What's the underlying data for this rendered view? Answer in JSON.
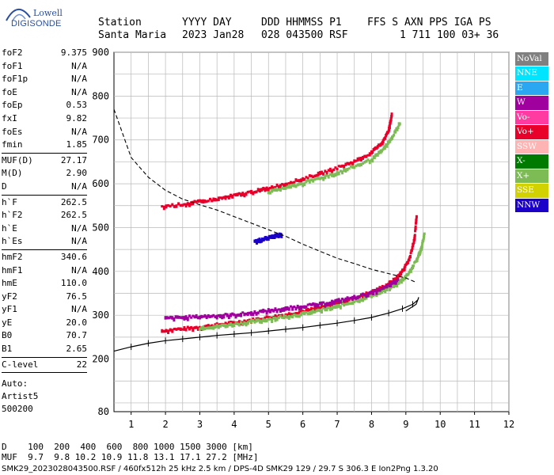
{
  "logo": {
    "line1": "Lowell",
    "line2": "DIGISONDE"
  },
  "header": {
    "row1": [
      "Station",
      "YYYY DAY",
      "DDD HHMMSS P1",
      "FFS S AXN PPS IGA PS"
    ],
    "row2": [
      "Santa Maria",
      "2023 Jan28",
      "028 043500 RSF",
      "1 711 100 03+ 36"
    ]
  },
  "params": [
    {
      "k": "foF2",
      "v": "9.375"
    },
    {
      "k": "foF1",
      "v": "N/A"
    },
    {
      "k": "foF1p",
      "v": "N/A"
    },
    {
      "k": "foE",
      "v": "N/A"
    },
    {
      "k": "foEp",
      "v": "0.53"
    },
    {
      "k": "fxI",
      "v": "9.82"
    },
    {
      "k": "foEs",
      "v": "N/A"
    },
    {
      "k": "fmin",
      "v": "1.85"
    },
    {
      "sep": true
    },
    {
      "k": "MUF(D)",
      "v": "27.17"
    },
    {
      "k": "M(D)",
      "v": "2.90"
    },
    {
      "k": "D",
      "v": "N/A"
    },
    {
      "sep": true
    },
    {
      "k": "h`F",
      "v": "262.5"
    },
    {
      "k": "h`F2",
      "v": "262.5"
    },
    {
      "k": "h`E",
      "v": "N/A"
    },
    {
      "k": "h`Es",
      "v": "N/A"
    },
    {
      "sep": true
    },
    {
      "k": "hmF2",
      "v": "340.6"
    },
    {
      "k": "hmF1",
      "v": "N/A"
    },
    {
      "k": "hmE",
      "v": "110.0"
    },
    {
      "k": "yF2",
      "v": "76.5"
    },
    {
      "k": "yF1",
      "v": "N/A"
    },
    {
      "k": "yE",
      "v": "20.0"
    },
    {
      "k": "B0",
      "v": "70.7"
    },
    {
      "k": "B1",
      "v": "2.65"
    },
    {
      "sep": true
    },
    {
      "k": "C-level",
      "v": "22"
    },
    {
      "sep": true
    }
  ],
  "auto": [
    "Auto:",
    "Artist5",
    "500200"
  ],
  "legend": [
    {
      "label": "NoVal",
      "color": "#808080"
    },
    {
      "label": "NNE",
      "color": "#00e5ff"
    },
    {
      "label": "E",
      "color": "#2aa7f0"
    },
    {
      "label": "W",
      "color": "#a0009e"
    },
    {
      "label": "Vo-",
      "color": "#ff3aa0"
    },
    {
      "label": "Vo+",
      "color": "#e8002a"
    },
    {
      "label": "SSW",
      "color": "#ffb4b4"
    },
    {
      "label": "X-",
      "color": "#007a00"
    },
    {
      "label": "X+",
      "color": "#7dbb55"
    },
    {
      "label": "SSE",
      "color": "#d2d200"
    },
    {
      "label": "NNW",
      "color": "#1a00c8"
    }
  ],
  "bottom": {
    "d_row": "D    100  200  400  600  800 1000 1500 3000 [km]",
    "muf_row": "MUF  9.7  9.8 10.2 10.9 11.8 13.1 17.1 27.2 [MHz]",
    "footer": "SMK29_2023028043500.RSF / 460fx512h 25 kHz 2.5 km / DPS-4D SMK29 129 / 29.7 S 306.3 E Ion2Png 1.3.20"
  },
  "chart_data": {
    "type": "scatter",
    "title": "",
    "xlabel": "",
    "ylabel": "",
    "xlim": [
      0.5,
      12
    ],
    "ylim": [
      80,
      900
    ],
    "x_ticks": [
      1,
      2,
      3,
      4,
      5,
      6,
      7,
      8,
      9,
      10,
      11,
      12
    ],
    "y_ticks": [
      200,
      300,
      400,
      500,
      600,
      700,
      800,
      900
    ],
    "y_tick_labels": [
      "200",
      "300",
      "400",
      "500",
      "600",
      "700",
      "800",
      "900"
    ],
    "extra_y_label": "80",
    "grid": true,
    "series": [
      {
        "name": "Vo+",
        "color": "#e8002a",
        "x": [
          1.9,
          2.5,
          3.0,
          3.5,
          4.0,
          4.5,
          5.0,
          5.5,
          6.0,
          6.5,
          7.0,
          7.5,
          8.0,
          8.4,
          8.7,
          8.9,
          9.1,
          9.25,
          9.32
        ],
        "y": [
          262,
          266,
          270,
          275,
          280,
          286,
          292,
          298,
          306,
          314,
          324,
          336,
          350,
          364,
          380,
          398,
          425,
          470,
          530
        ]
      },
      {
        "name": "X+",
        "color": "#7dbb55",
        "x": [
          3.0,
          3.5,
          4.0,
          4.5,
          5.0,
          5.5,
          6.0,
          6.5,
          7.0,
          7.5,
          8.0,
          8.5,
          8.8,
          9.05,
          9.3,
          9.45,
          9.55
        ],
        "y": [
          268,
          272,
          277,
          282,
          288,
          294,
          300,
          308,
          317,
          328,
          342,
          358,
          372,
          390,
          420,
          450,
          485
        ]
      },
      {
        "name": "W",
        "color": "#a0009e",
        "x": [
          2.0,
          2.5,
          3.0,
          3.5,
          4.0,
          4.5,
          5.0,
          5.5,
          6.0,
          6.5,
          7.0,
          7.5,
          8.0,
          8.5,
          8.8
        ],
        "y": [
          290,
          292,
          294,
          296,
          298,
          302,
          308,
          312,
          318,
          322,
          330,
          338,
          348,
          364,
          378
        ]
      },
      {
        "name": "Vo+ (2F)",
        "color": "#e8002a",
        "x": [
          1.9,
          2.5,
          3.0,
          3.5,
          4.0,
          4.5,
          5.0,
          5.5,
          6.0,
          6.5,
          7.0,
          7.5,
          8.0,
          8.3,
          8.5,
          8.6
        ],
        "y": [
          545,
          550,
          556,
          562,
          570,
          578,
          587,
          597,
          608,
          620,
          633,
          648,
          668,
          690,
          718,
          760
        ]
      },
      {
        "name": "X+ (2F)",
        "color": "#7dbb55",
        "x": [
          5.0,
          5.5,
          6.0,
          6.5,
          7.0,
          7.5,
          8.0,
          8.3,
          8.6,
          8.85
        ],
        "y": [
          578,
          588,
          598,
          610,
          622,
          636,
          652,
          672,
          702,
          740
        ]
      },
      {
        "name": "NNW",
        "color": "#1a00c8",
        "x": [
          4.6,
          4.8,
          5.0,
          5.2,
          5.4
        ],
        "y": [
          465,
          470,
          474,
          478,
          482
        ]
      }
    ],
    "profile": {
      "x": [
        0.5,
        1.0,
        1.5,
        2.0,
        2.5,
        3.0,
        3.5,
        4.0,
        4.5,
        5.0,
        5.5,
        6.0,
        6.5,
        7.0,
        7.5,
        8.0,
        8.5,
        8.9,
        9.2,
        9.35,
        9.375,
        9.3,
        9.0
      ],
      "y": [
        218,
        228,
        236,
        242,
        246,
        250,
        254,
        257,
        260,
        264,
        268,
        272,
        277,
        282,
        288,
        295,
        305,
        315,
        325,
        335,
        341,
        325,
        310
      ]
    },
    "muf_curve": {
      "x": [
        0.5,
        1.0,
        1.5,
        2.0,
        2.5,
        3.0,
        3.5,
        4.0,
        4.5,
        5.0,
        5.5,
        6.0,
        6.5,
        7.0,
        7.5,
        8.0,
        8.5,
        9.0,
        9.3
      ],
      "y": [
        770,
        660,
        615,
        585,
        565,
        552,
        540,
        525,
        510,
        495,
        480,
        462,
        446,
        430,
        418,
        405,
        395,
        385,
        375
      ]
    }
  }
}
